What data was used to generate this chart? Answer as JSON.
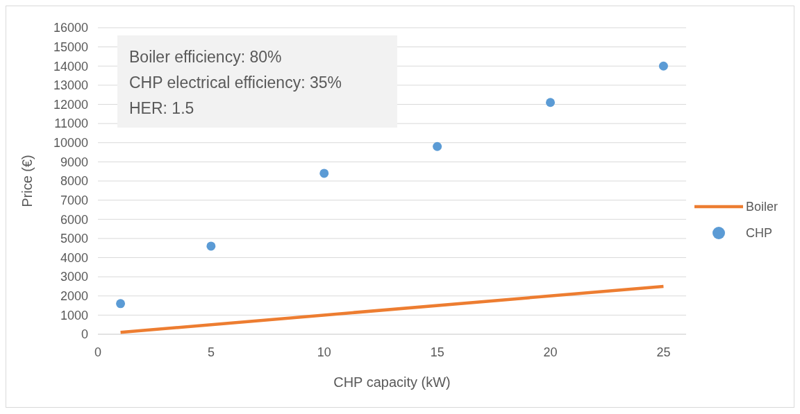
{
  "chart_data": {
    "type": "scatter",
    "xlabel": "CHP capacity (kW)",
    "ylabel": "Price (€)",
    "annotations": [
      "Boiler efficiency: 80%",
      "CHP electrical efficiency: 35%",
      "HER: 1.5"
    ],
    "series": [
      {
        "name": "Boiler",
        "type": "line",
        "color": "#ed7d31",
        "x": [
          1,
          25
        ],
        "values": [
          100,
          2500
        ],
        "marker": "none"
      },
      {
        "name": "CHP",
        "color": "#5b9bd5",
        "x": [
          1,
          5,
          10,
          15,
          20,
          25
        ],
        "values": [
          1600,
          4600,
          8400,
          9800,
          12100,
          14000
        ],
        "marker": "circle"
      }
    ],
    "xlim": [
      0,
      26
    ],
    "xticks": [
      0,
      5,
      10,
      15,
      20,
      25
    ],
    "ylim": [
      0,
      16000
    ],
    "yticks": [
      0,
      1000,
      2000,
      3000,
      4000,
      5000,
      6000,
      7000,
      8000,
      9000,
      10000,
      11000,
      12000,
      13000,
      14000,
      15000,
      16000
    ],
    "grid": "y",
    "legend": "right"
  }
}
